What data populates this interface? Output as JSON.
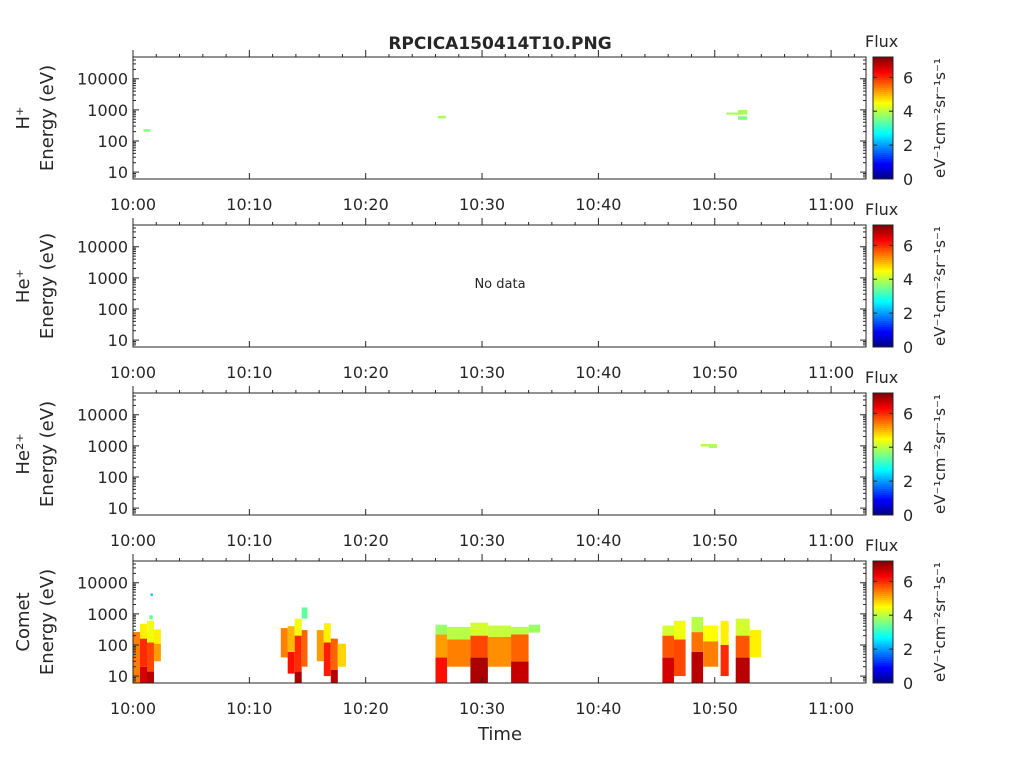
{
  "title": "RPCICA150414T10.PNG",
  "colorbar": {
    "label": "Flux",
    "unit_label": "eV⁻¹cm⁻²sr⁻¹s⁻¹",
    "ticks": [
      "0",
      "2",
      "4",
      "6"
    ],
    "range": [
      0,
      7.2
    ],
    "colormap": "jet"
  },
  "xlabel": "Time",
  "chart_data": [
    {
      "type": "heatmap",
      "species_label": "H⁺",
      "ylabel": "Energy (eV)",
      "yscale": "log",
      "ylim": [
        6,
        50000
      ],
      "yticks": [
        "10",
        "100",
        "1000",
        "10000"
      ],
      "xlim_minutes": [
        0,
        63
      ],
      "xticks": [
        "10:00",
        "10:10",
        "10:20",
        "10:30",
        "10:40",
        "10:50",
        "11:00"
      ],
      "note": "",
      "cells": [
        {
          "t0": 0.9,
          "t1": 1.5,
          "e0": 200,
          "e1": 240,
          "v": 3.6
        },
        {
          "t0": 26.2,
          "t1": 26.9,
          "e0": 530,
          "e1": 640,
          "v": 3.9
        },
        {
          "t0": 51.0,
          "t1": 52.0,
          "e0": 700,
          "e1": 820,
          "v": 3.9
        },
        {
          "t0": 52.0,
          "t1": 52.8,
          "e0": 700,
          "e1": 1000,
          "v": 3.9
        },
        {
          "t0": 52.0,
          "t1": 52.8,
          "e0": 480,
          "e1": 620,
          "v": 3.6
        }
      ]
    },
    {
      "type": "heatmap",
      "species_label": "He⁺",
      "ylabel": "Energy (eV)",
      "yscale": "log",
      "ylim": [
        6,
        50000
      ],
      "yticks": [
        "10",
        "100",
        "1000",
        "10000"
      ],
      "xlim_minutes": [
        0,
        63
      ],
      "xticks": [
        "10:00",
        "10:10",
        "10:20",
        "10:30",
        "10:40",
        "10:50",
        "11:00"
      ],
      "note": "No data",
      "cells": []
    },
    {
      "type": "heatmap",
      "species_label": "He²⁺",
      "ylabel": "Energy (eV)",
      "yscale": "log",
      "ylim": [
        6,
        50000
      ],
      "yticks": [
        "10",
        "100",
        "1000",
        "10000"
      ],
      "xlim_minutes": [
        0,
        63
      ],
      "xticks": [
        "10:00",
        "10:10",
        "10:20",
        "10:30",
        "10:40",
        "10:50",
        "11:00"
      ],
      "note": "",
      "cells": [
        {
          "t0": 48.8,
          "t1": 50.2,
          "e0": 950,
          "e1": 1150,
          "v": 4.0
        },
        {
          "t0": 49.5,
          "t1": 50.2,
          "e0": 860,
          "e1": 950,
          "v": 3.7
        }
      ]
    },
    {
      "type": "heatmap",
      "species_label": "Comet",
      "ylabel": "Energy (eV)",
      "yscale": "log",
      "ylim": [
        6,
        50000
      ],
      "yticks": [
        "10",
        "100",
        "1000",
        "10000"
      ],
      "xlim_minutes": [
        0,
        63
      ],
      "xticks": [
        "10:00",
        "10:10",
        "10:20",
        "10:30",
        "10:40",
        "10:50",
        "11:00"
      ],
      "note": "",
      "cells": [
        {
          "t0": 0.0,
          "t1": 0.6,
          "e0": 6,
          "e1": 260,
          "v": 5.4
        },
        {
          "t0": 0.6,
          "t1": 1.2,
          "e0": 6,
          "e1": 20,
          "v": 6.6
        },
        {
          "t0": 0.6,
          "t1": 1.2,
          "e0": 20,
          "e1": 160,
          "v": 6.0
        },
        {
          "t0": 0.6,
          "t1": 1.2,
          "e0": 160,
          "e1": 480,
          "v": 4.6
        },
        {
          "t0": 1.2,
          "t1": 1.8,
          "e0": 6,
          "e1": 14,
          "v": 6.8
        },
        {
          "t0": 1.2,
          "t1": 1.8,
          "e0": 14,
          "e1": 120,
          "v": 5.8
        },
        {
          "t0": 1.2,
          "t1": 1.8,
          "e0": 120,
          "e1": 600,
          "v": 4.4
        },
        {
          "t0": 1.4,
          "t1": 1.7,
          "e0": 680,
          "e1": 900,
          "v": 3.4
        },
        {
          "t0": 1.5,
          "t1": 1.7,
          "e0": 3800,
          "e1": 4500,
          "v": 2.2
        },
        {
          "t0": 1.8,
          "t1": 2.4,
          "e0": 30,
          "e1": 110,
          "v": 5.2
        },
        {
          "t0": 1.8,
          "t1": 2.4,
          "e0": 110,
          "e1": 320,
          "v": 4.6
        },
        {
          "t0": 12.7,
          "t1": 13.3,
          "e0": 40,
          "e1": 350,
          "v": 5.4
        },
        {
          "t0": 13.3,
          "t1": 13.9,
          "e0": 12,
          "e1": 60,
          "v": 6.2
        },
        {
          "t0": 13.3,
          "t1": 13.9,
          "e0": 60,
          "e1": 400,
          "v": 5.0
        },
        {
          "t0": 13.9,
          "t1": 14.5,
          "e0": 6,
          "e1": 14,
          "v": 6.9
        },
        {
          "t0": 13.9,
          "t1": 14.5,
          "e0": 14,
          "e1": 200,
          "v": 6.0
        },
        {
          "t0": 13.9,
          "t1": 14.5,
          "e0": 200,
          "e1": 700,
          "v": 4.4
        },
        {
          "t0": 14.5,
          "t1": 15.0,
          "e0": 20,
          "e1": 300,
          "v": 5.6
        },
        {
          "t0": 14.5,
          "t1": 15.0,
          "e0": 700,
          "e1": 1600,
          "v": 3.4
        },
        {
          "t0": 15.8,
          "t1": 16.4,
          "e0": 30,
          "e1": 300,
          "v": 5.2
        },
        {
          "t0": 16.4,
          "t1": 17.0,
          "e0": 10,
          "e1": 120,
          "v": 6.1
        },
        {
          "t0": 16.4,
          "t1": 17.0,
          "e0": 120,
          "e1": 500,
          "v": 4.6
        },
        {
          "t0": 17.0,
          "t1": 17.6,
          "e0": 6,
          "e1": 16,
          "v": 6.8
        },
        {
          "t0": 17.0,
          "t1": 17.6,
          "e0": 16,
          "e1": 160,
          "v": 5.6
        },
        {
          "t0": 17.6,
          "t1": 18.3,
          "e0": 20,
          "e1": 110,
          "v": 4.8
        },
        {
          "t0": 26.0,
          "t1": 27.0,
          "e0": 6,
          "e1": 40,
          "v": 6.2
        },
        {
          "t0": 26.0,
          "t1": 27.0,
          "e0": 40,
          "e1": 220,
          "v": 5.2
        },
        {
          "t0": 26.0,
          "t1": 27.0,
          "e0": 220,
          "e1": 450,
          "v": 3.8
        },
        {
          "t0": 27.0,
          "t1": 29.0,
          "e0": 20,
          "e1": 150,
          "v": 5.4
        },
        {
          "t0": 27.0,
          "t1": 29.0,
          "e0": 150,
          "e1": 380,
          "v": 4.0
        },
        {
          "t0": 29.0,
          "t1": 30.5,
          "e0": 6,
          "e1": 40,
          "v": 6.9
        },
        {
          "t0": 29.0,
          "t1": 30.5,
          "e0": 40,
          "e1": 200,
          "v": 5.8
        },
        {
          "t0": 29.0,
          "t1": 30.5,
          "e0": 200,
          "e1": 520,
          "v": 4.2
        },
        {
          "t0": 30.5,
          "t1": 32.5,
          "e0": 20,
          "e1": 180,
          "v": 5.3
        },
        {
          "t0": 30.5,
          "t1": 32.5,
          "e0": 180,
          "e1": 420,
          "v": 4.1
        },
        {
          "t0": 32.5,
          "t1": 34.0,
          "e0": 6,
          "e1": 30,
          "v": 6.7
        },
        {
          "t0": 32.5,
          "t1": 34.0,
          "e0": 30,
          "e1": 220,
          "v": 5.6
        },
        {
          "t0": 32.5,
          "t1": 34.0,
          "e0": 220,
          "e1": 380,
          "v": 4.0
        },
        {
          "t0": 34.0,
          "t1": 35.0,
          "e0": 250,
          "e1": 450,
          "v": 3.8
        },
        {
          "t0": 45.5,
          "t1": 46.5,
          "e0": 6,
          "e1": 40,
          "v": 6.6
        },
        {
          "t0": 45.5,
          "t1": 46.5,
          "e0": 40,
          "e1": 200,
          "v": 5.7
        },
        {
          "t0": 45.5,
          "t1": 46.5,
          "e0": 200,
          "e1": 420,
          "v": 4.2
        },
        {
          "t0": 46.5,
          "t1": 47.5,
          "e0": 10,
          "e1": 150,
          "v": 5.8
        },
        {
          "t0": 46.5,
          "t1": 47.5,
          "e0": 150,
          "e1": 600,
          "v": 4.4
        },
        {
          "t0": 48.0,
          "t1": 49.0,
          "e0": 6,
          "e1": 60,
          "v": 6.8
        },
        {
          "t0": 48.0,
          "t1": 49.0,
          "e0": 60,
          "e1": 260,
          "v": 5.5
        },
        {
          "t0": 48.0,
          "t1": 49.0,
          "e0": 260,
          "e1": 800,
          "v": 4.0
        },
        {
          "t0": 49.0,
          "t1": 50.3,
          "e0": 20,
          "e1": 130,
          "v": 5.4
        },
        {
          "t0": 49.0,
          "t1": 50.3,
          "e0": 130,
          "e1": 420,
          "v": 4.5
        },
        {
          "t0": 50.5,
          "t1": 51.2,
          "e0": 10,
          "e1": 100,
          "v": 6.0
        },
        {
          "t0": 50.5,
          "t1": 51.2,
          "e0": 100,
          "e1": 600,
          "v": 4.6
        },
        {
          "t0": 51.8,
          "t1": 53.0,
          "e0": 6,
          "e1": 40,
          "v": 6.8
        },
        {
          "t0": 51.8,
          "t1": 53.0,
          "e0": 40,
          "e1": 200,
          "v": 5.7
        },
        {
          "t0": 51.8,
          "t1": 53.0,
          "e0": 200,
          "e1": 700,
          "v": 4.2
        },
        {
          "t0": 53.0,
          "t1": 54.0,
          "e0": 40,
          "e1": 300,
          "v": 4.6
        }
      ]
    }
  ]
}
